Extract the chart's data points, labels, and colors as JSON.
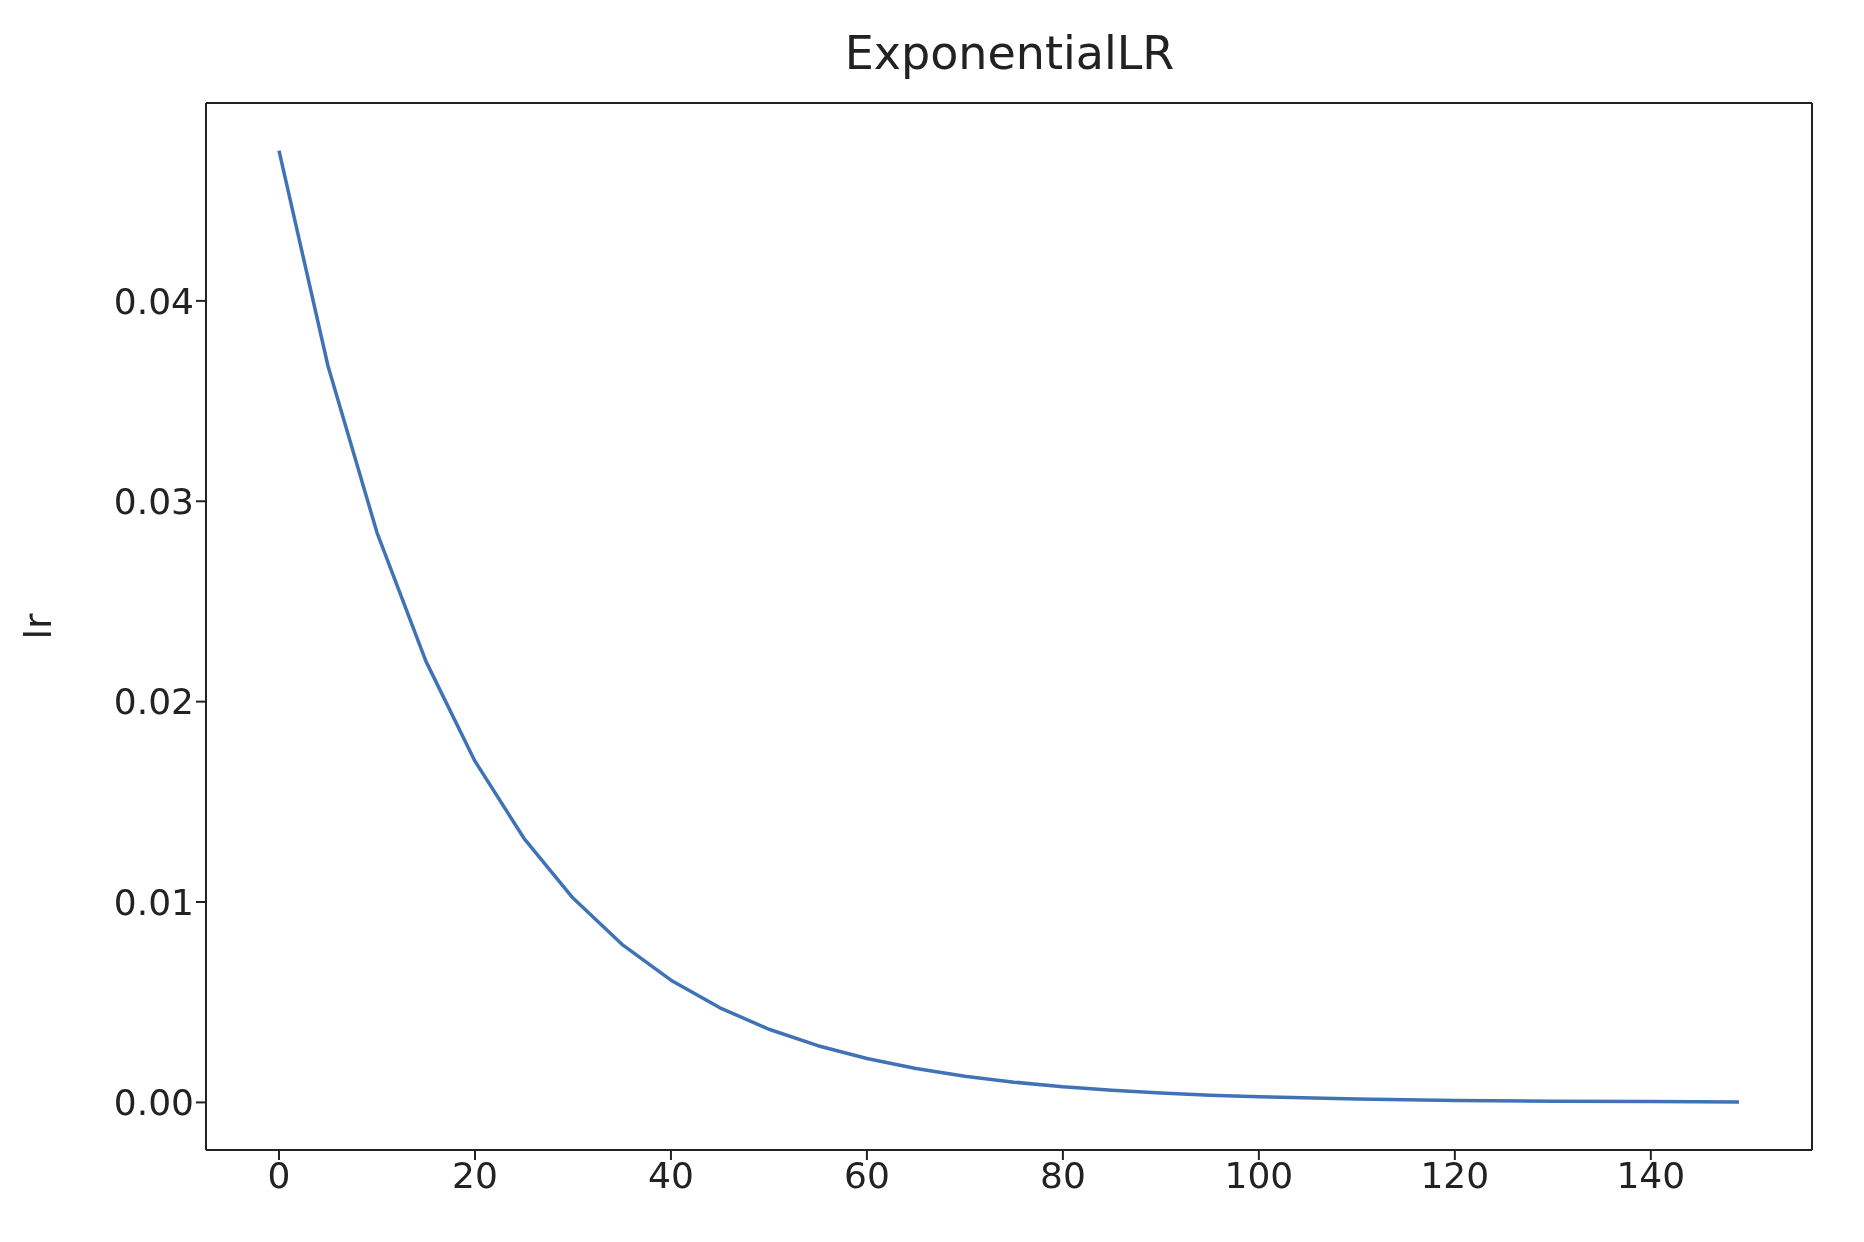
{
  "chart_data": {
    "type": "line",
    "title": "ExponentialLR",
    "ylabel": "lr",
    "x": [
      0,
      5,
      10,
      15,
      20,
      25,
      30,
      35,
      40,
      45,
      50,
      55,
      60,
      65,
      70,
      75,
      80,
      85,
      90,
      95,
      100,
      110,
      120,
      130,
      140,
      149
    ],
    "series": [
      {
        "color": "#3f73b5",
        "values": [
          0.0475,
          0.03675,
          0.02844,
          0.02201,
          0.01703,
          0.01318,
          0.0102,
          0.00789,
          0.0061,
          0.00472,
          0.00365,
          0.00283,
          0.00219,
          0.00169,
          0.00131,
          0.00101,
          0.00078,
          0.00061,
          0.00047,
          0.00036,
          0.00028,
          0.00017,
          0.0001,
          6e-05,
          4e-05,
          2e-05
        ]
      }
    ],
    "xlim": [
      -7.45,
      156.45
    ],
    "xticks": [
      0,
      20,
      40,
      60,
      80,
      100,
      120,
      140
    ],
    "ylim": [
      -0.002375,
      0.049875
    ],
    "yticks": [
      {
        "value": 0,
        "label": "0.00"
      },
      {
        "value": 0.01,
        "label": "0.01"
      },
      {
        "value": 0.02,
        "label": "0.02"
      },
      {
        "value": 0.03,
        "label": "0.03"
      },
      {
        "value": 0.04,
        "label": "0.04"
      }
    ],
    "grid": false,
    "legend": false,
    "marker": "none",
    "line_style": "solid"
  }
}
